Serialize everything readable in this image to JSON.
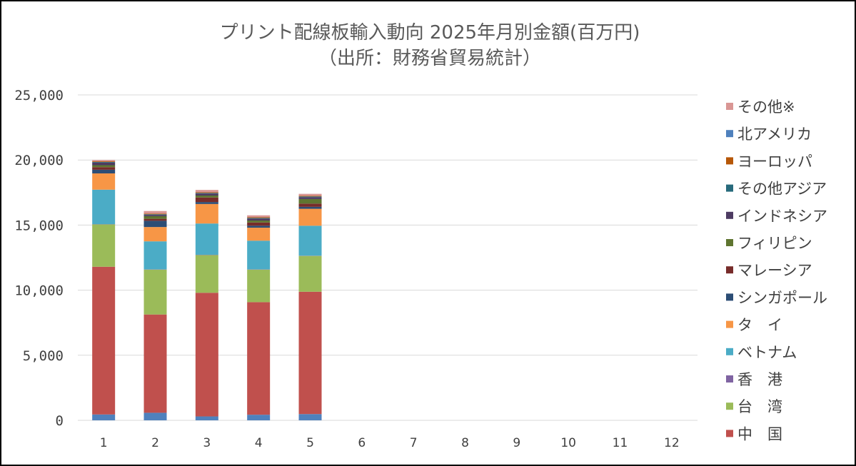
{
  "chart_data": {
    "type": "bar",
    "stacked": true,
    "title": "プリント配線板輸入動向 2025年月別金額(百万円)",
    "subtitle": "（出所：財務省貿易統計）",
    "xlabel": "",
    "ylabel": "",
    "categories": [
      "1",
      "2",
      "3",
      "4",
      "5",
      "6",
      "7",
      "8",
      "9",
      "10",
      "11",
      "12"
    ],
    "ylim": [
      0,
      25000
    ],
    "yticks": [
      0,
      5000,
      10000,
      15000,
      20000,
      25000
    ],
    "ytick_labels": [
      "0",
      "5,000",
      "10,000",
      "15,000",
      "20,000",
      "25,000"
    ],
    "grid": true,
    "legend_position": "right",
    "series": [
      {
        "name": "北アメリカ",
        "color": "#4f81bd",
        "values": [
          450,
          580,
          300,
          430,
          480,
          null,
          null,
          null,
          null,
          null,
          null,
          null
        ]
      },
      {
        "name": "中　国",
        "color": "#c0504d",
        "values": [
          11350,
          7550,
          9500,
          8650,
          9400,
          null,
          null,
          null,
          null,
          null,
          null,
          null
        ]
      },
      {
        "name": "台　湾",
        "color": "#9bbb59",
        "values": [
          3250,
          3450,
          2900,
          2500,
          2750,
          null,
          null,
          null,
          null,
          null,
          null,
          null
        ]
      },
      {
        "name": "香　港",
        "color": "#8064a2",
        "values": [
          20,
          20,
          20,
          20,
          20,
          null,
          null,
          null,
          null,
          null,
          null,
          null
        ]
      },
      {
        "name": "ベトナム",
        "color": "#4bacc6",
        "values": [
          2650,
          2150,
          2400,
          2200,
          2300,
          null,
          null,
          null,
          null,
          null,
          null,
          null
        ]
      },
      {
        "name": "タ　イ",
        "color": "#f79646",
        "values": [
          1250,
          1100,
          1500,
          1000,
          1300,
          null,
          null,
          null,
          null,
          null,
          null,
          null
        ]
      },
      {
        "name": "シンガポール",
        "color": "#2c4d75",
        "values": [
          280,
          480,
          150,
          150,
          150,
          null,
          null,
          null,
          null,
          null,
          null,
          null
        ]
      },
      {
        "name": "マレーシア",
        "color": "#772c2a",
        "values": [
          200,
          150,
          350,
          250,
          250,
          null,
          null,
          null,
          null,
          null,
          null,
          null
        ]
      },
      {
        "name": "フィリピン",
        "color": "#5f7530",
        "values": [
          150,
          200,
          150,
          150,
          350,
          null,
          null,
          null,
          null,
          null,
          null,
          null
        ]
      },
      {
        "name": "インドネシア",
        "color": "#4d3b62",
        "values": [
          200,
          100,
          150,
          150,
          150,
          null,
          null,
          null,
          null,
          null,
          null,
          null
        ]
      },
      {
        "name": "その他アジア",
        "color": "#276a7c",
        "values": [
          50,
          50,
          50,
          50,
          50,
          null,
          null,
          null,
          null,
          null,
          null,
          null
        ]
      },
      {
        "name": "ヨーロッパ",
        "color": "#b65708",
        "values": [
          50,
          50,
          50,
          50,
          50,
          null,
          null,
          null,
          null,
          null,
          null,
          null
        ]
      },
      {
        "name": "その他※",
        "color": "#d99694",
        "values": [
          100,
          200,
          180,
          150,
          150,
          null,
          null,
          null,
          null,
          null,
          null,
          null
        ]
      }
    ],
    "legend_order": [
      "その他※",
      "北アメリカ",
      "ヨーロッパ",
      "その他アジア",
      "インドネシア",
      "フィリピン",
      "マレーシア",
      "シンガポール",
      "タ　イ",
      "ベトナム",
      "香　港",
      "台　湾",
      "中　国"
    ]
  }
}
